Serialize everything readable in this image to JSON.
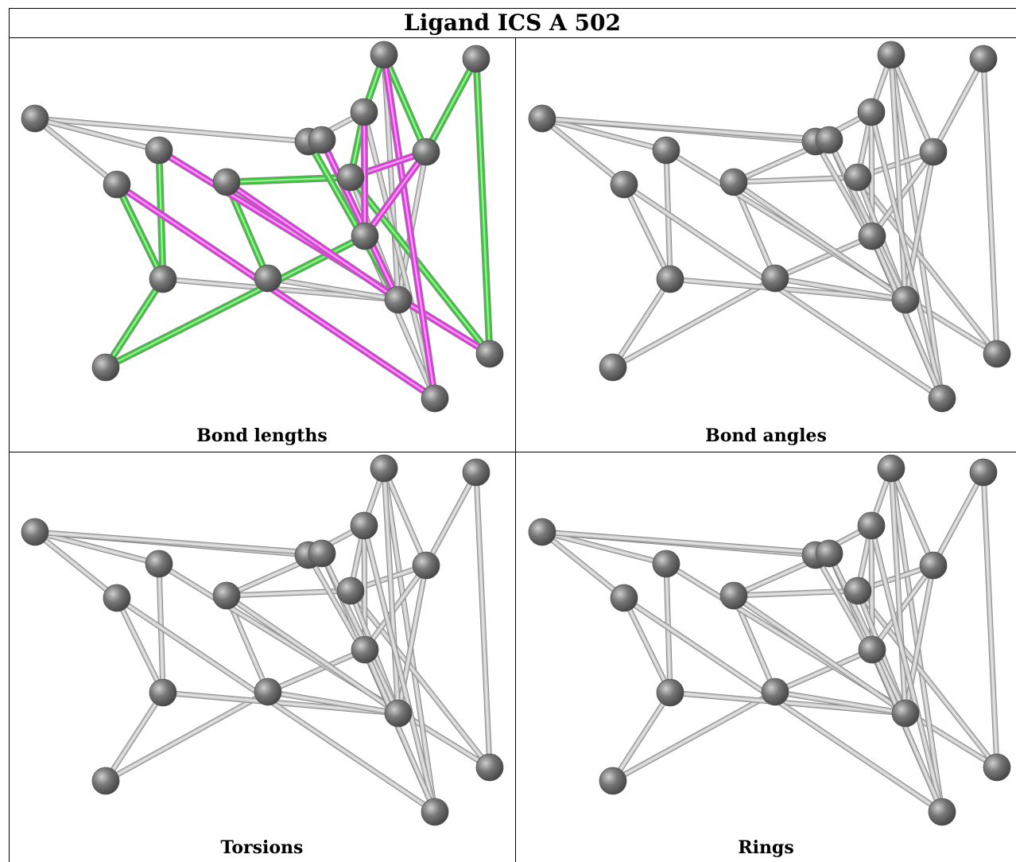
{
  "title": "Ligand ICS A 502",
  "panels": [
    {
      "caption": "Bond lengths",
      "highlight": true
    },
    {
      "caption": "Bond angles",
      "highlight": false
    },
    {
      "caption": "Torsions",
      "highlight": false
    },
    {
      "caption": "Rings",
      "highlight": false
    }
  ],
  "colors": {
    "bond": "#c8c8c8",
    "bond_edge": "#9a9a9a",
    "atom": "#777777",
    "green": "#33cc33",
    "magenta": "#e633e6"
  }
}
